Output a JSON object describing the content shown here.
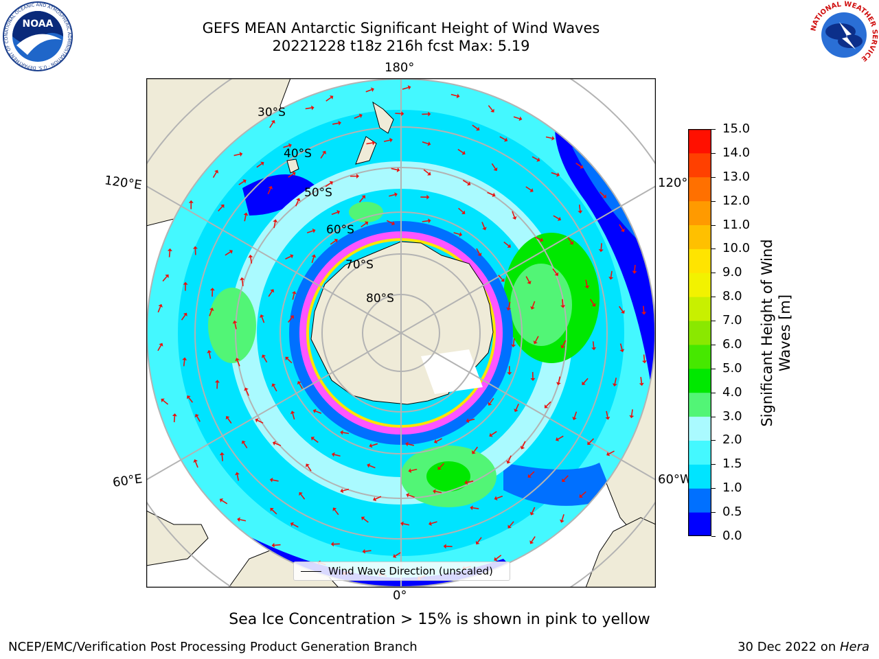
{
  "title": {
    "line1": "GEFS MEAN Antarctic Significant Height of Wind Waves",
    "line2": "20221228 t18z 216h fcst   Max: 5.19"
  },
  "map": {
    "projection": "south-polar-stereographic",
    "longitude_labels": {
      "top": "180°",
      "bottom": "0°",
      "upper_left": "120°E",
      "upper_right": "120°W",
      "lower_left": "60°E",
      "lower_right": "60°W"
    },
    "latitude_labels": [
      "30°S",
      "40°S",
      "50°S",
      "60°S",
      "70°S",
      "80°S"
    ],
    "legend_label": "Wind Wave Direction (unscaled)",
    "arrow_color": "#e8120e",
    "land_color": "#efebd8"
  },
  "colorbar": {
    "label": "Significant Height of Wind Waves [m]",
    "ticks": [
      "0.0",
      "0.5",
      "1.0",
      "1.5",
      "2.0",
      "3.0",
      "4.0",
      "5.0",
      "6.0",
      "7.0",
      "8.0",
      "9.0",
      "10.0",
      "11.0",
      "12.0",
      "13.0",
      "14.0",
      "15.0"
    ],
    "colors": [
      "#0000ff",
      "#0070ff",
      "#00e4ff",
      "#44f8ff",
      "#aafaff",
      "#52f576",
      "#00e800",
      "#46e800",
      "#8ae800",
      "#c8f000",
      "#f2f200",
      "#ffe400",
      "#ffc000",
      "#ff9a00",
      "#ff7000",
      "#ff4000",
      "#ff1000"
    ]
  },
  "note": "Sea Ice Concentration > 15% is shown in pink to yellow",
  "footer": {
    "left": "NCEP/EMC/Verification Post Processing Product Generation Branch",
    "right_prefix": "30 Dec 2022 on ",
    "right_host": "Hera"
  },
  "logos": {
    "noaa": {
      "text": "NOAA",
      "ring_text": "NATIONAL OCEANIC AND ATMOSPHERIC ADMINISTRATION · U.S. DEPARTMENT OF COMMERCE"
    },
    "nws": {
      "ring_text": "NATIONAL WEATHER SERVICE"
    }
  }
}
